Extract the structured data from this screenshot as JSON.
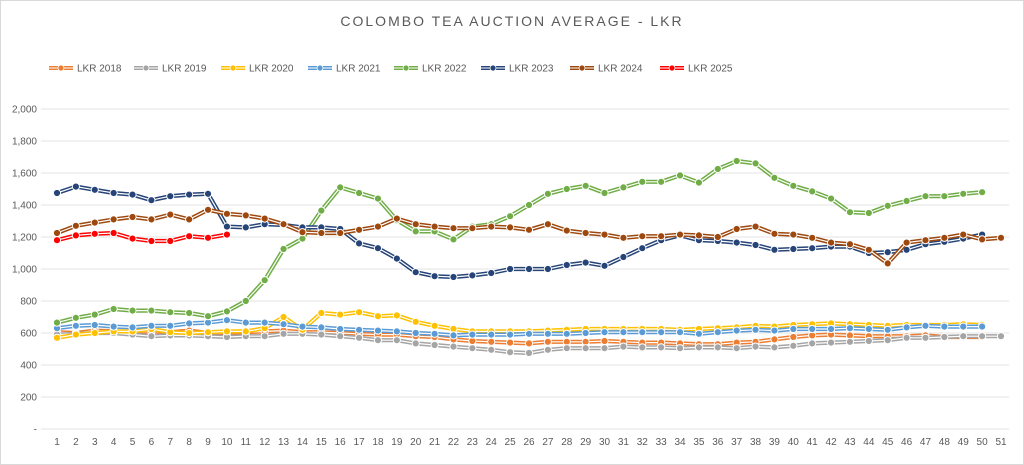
{
  "chart_data": {
    "type": "line",
    "title": "COLOMBO TEA AUCTION AVERAGE - LKR",
    "xlabel": "",
    "ylabel": "",
    "ylim": [
      0,
      2000
    ],
    "y_ticks": [
      "-",
      "200",
      "400",
      "600",
      "800",
      "1,000",
      "1,200",
      "1,400",
      "1,600",
      "1,800",
      "2,000"
    ],
    "x": [
      1,
      2,
      3,
      4,
      5,
      6,
      7,
      8,
      9,
      10,
      11,
      12,
      13,
      14,
      15,
      16,
      17,
      18,
      19,
      20,
      21,
      22,
      23,
      24,
      25,
      26,
      27,
      28,
      29,
      30,
      31,
      32,
      33,
      34,
      35,
      36,
      37,
      38,
      39,
      40,
      41,
      42,
      43,
      44,
      45,
      46,
      47,
      48,
      49,
      50,
      51
    ],
    "grid": true,
    "legend_position": "top-left",
    "series": [
      {
        "name": "LKR 2018",
        "color": "#ED7D31",
        "values": [
          605,
          600,
          615,
          610,
          605,
          610,
          605,
          615,
          600,
          600,
          605,
          610,
          615,
          605,
          605,
          600,
          595,
          590,
          590,
          580,
          575,
          560,
          550,
          545,
          540,
          535,
          545,
          545,
          545,
          550,
          545,
          540,
          540,
          535,
          530,
          530,
          540,
          545,
          560,
          575,
          585,
          590,
          585,
          580,
          580,
          580,
          585,
          575,
          575,
          575,
          null
        ]
      },
      {
        "name": "LKR 2019",
        "color": "#A5A5A5",
        "values": [
          590,
          595,
          600,
          600,
          590,
          580,
          585,
          585,
          580,
          575,
          580,
          580,
          595,
          595,
          590,
          580,
          570,
          555,
          555,
          535,
          525,
          515,
          505,
          495,
          480,
          475,
          495,
          505,
          505,
          505,
          515,
          510,
          510,
          505,
          510,
          510,
          505,
          515,
          510,
          520,
          535,
          540,
          545,
          550,
          555,
          570,
          570,
          575,
          580,
          580,
          580
        ]
      },
      {
        "name": "LKR 2020",
        "color": "#FFC000",
        "values": [
          570,
          590,
          600,
          610,
          610,
          625,
          605,
          600,
          605,
          610,
          610,
          630,
          700,
          620,
          725,
          715,
          730,
          705,
          710,
          670,
          645,
          625,
          610,
          610,
          610,
          610,
          615,
          620,
          625,
          625,
          625,
          625,
          625,
          620,
          625,
          630,
          635,
          645,
          640,
          650,
          655,
          660,
          655,
          650,
          645,
          650,
          650,
          650,
          655,
          650,
          null
        ]
      },
      {
        "name": "LKR 2021",
        "color": "#5B9BD5",
        "values": [
          630,
          645,
          650,
          640,
          635,
          645,
          645,
          660,
          665,
          680,
          665,
          665,
          655,
          640,
          635,
          625,
          620,
          615,
          610,
          600,
          595,
          585,
          590,
          590,
          590,
          595,
          595,
          595,
          600,
          605,
          605,
          605,
          605,
          605,
          595,
          605,
          615,
          620,
          615,
          625,
          625,
          625,
          630,
          625,
          620,
          635,
          645,
          640,
          640,
          640,
          null
        ]
      },
      {
        "name": "LKR 2022",
        "color": "#70AD47",
        "values": [
          665,
          695,
          715,
          750,
          740,
          740,
          730,
          725,
          705,
          735,
          800,
          930,
          1125,
          1190,
          1365,
          1510,
          1475,
          1440,
          1305,
          1235,
          1235,
          1185,
          1265,
          1280,
          1330,
          1400,
          1470,
          1500,
          1520,
          1475,
          1510,
          1545,
          1545,
          1585,
          1540,
          1625,
          1675,
          1660,
          1570,
          1520,
          1485,
          1440,
          1355,
          1350,
          1395,
          1425,
          1455,
          1455,
          1470,
          1480,
          null
        ]
      },
      {
        "name": "LKR 2023",
        "color": "#264478",
        "values": [
          1475,
          1515,
          1495,
          1475,
          1465,
          1430,
          1455,
          1465,
          1470,
          1265,
          1260,
          1280,
          1275,
          1260,
          1260,
          1250,
          1160,
          1130,
          1065,
          980,
          955,
          950,
          960,
          975,
          1000,
          1000,
          1000,
          1025,
          1040,
          1020,
          1075,
          1130,
          1180,
          1210,
          1180,
          1175,
          1165,
          1150,
          1120,
          1125,
          1130,
          1140,
          1140,
          1100,
          1105,
          1120,
          1155,
          1170,
          1190,
          1215,
          null
        ]
      },
      {
        "name": "LKR 2024",
        "color": "#9E480E",
        "values": [
          1225,
          1270,
          1290,
          1310,
          1325,
          1310,
          1340,
          1310,
          1370,
          1345,
          1335,
          1315,
          1280,
          1230,
          1225,
          1225,
          1245,
          1265,
          1315,
          1280,
          1265,
          1255,
          1255,
          1265,
          1260,
          1245,
          1280,
          1240,
          1225,
          1215,
          1195,
          1205,
          1205,
          1215,
          1210,
          1200,
          1250,
          1265,
          1220,
          1215,
          1195,
          1165,
          1155,
          1120,
          1035,
          1165,
          1180,
          1195,
          1215,
          1185,
          1195
        ]
      },
      {
        "name": "LKR 2025",
        "color": "#FF0000",
        "values": [
          1180,
          1210,
          1220,
          1225,
          1190,
          1175,
          1175,
          1205,
          1195,
          1215,
          null,
          null,
          null,
          null,
          null,
          null,
          null,
          null,
          null,
          null,
          null,
          null,
          null,
          null,
          null,
          null,
          null,
          null,
          null,
          null,
          null,
          null,
          null,
          null,
          null,
          null,
          null,
          null,
          null,
          null,
          null,
          null,
          null,
          null,
          null,
          null,
          null,
          null,
          null,
          null,
          null
        ]
      }
    ]
  }
}
